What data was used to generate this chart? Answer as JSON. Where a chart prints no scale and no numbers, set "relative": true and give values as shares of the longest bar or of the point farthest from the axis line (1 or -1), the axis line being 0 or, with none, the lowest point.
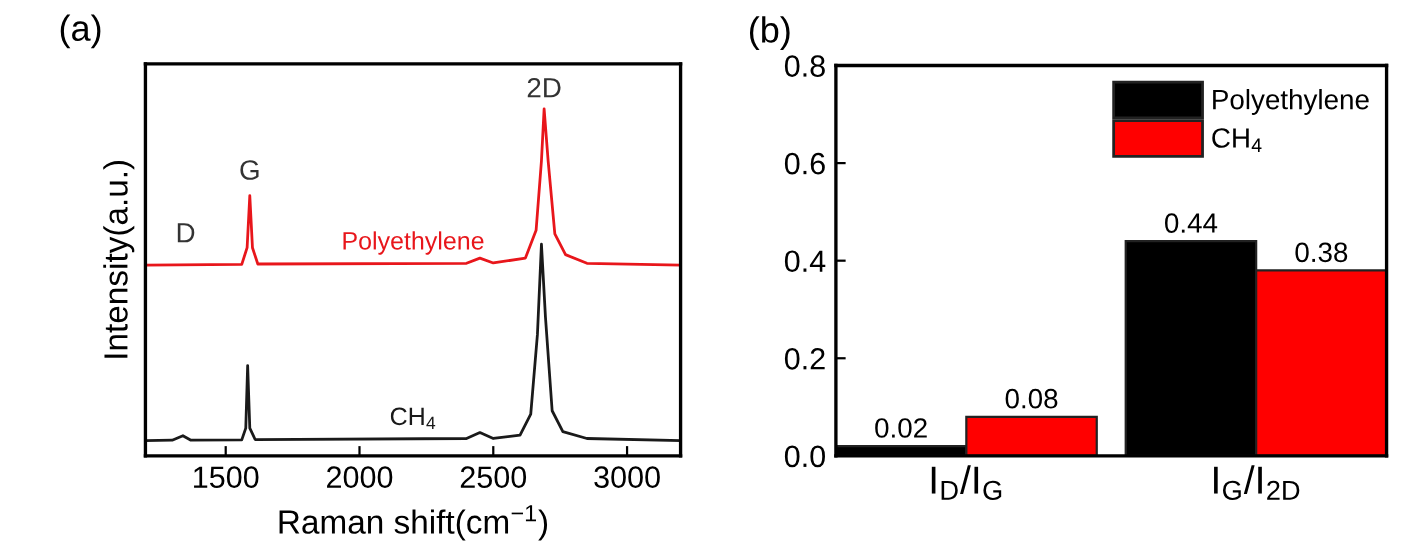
{
  "chart_data": [
    {
      "type": "line",
      "title": "(a)",
      "xlabel": "Raman shift(cm$^{−1}$)",
      "ylabel": "Intensity(a.u.)",
      "relative": true,
      "xlim": [
        1200,
        3200
      ],
      "xticks": [
        1500,
        2000,
        2500,
        3000
      ],
      "tick_labels": "x",
      "grid": false,
      "series": [
        {
          "name": "Polyethylene",
          "color": "#e8161b",
          "x": [
            1200,
            1560,
            1580,
            1590,
            1600,
            1620,
            2400,
            2450,
            2500,
            2620,
            2660,
            2680,
            2690,
            2705,
            2730,
            2770,
            2850,
            3200
          ],
          "values": [
            0.55,
            0.552,
            0.6,
            0.75,
            0.6,
            0.553,
            0.555,
            0.57,
            0.556,
            0.57,
            0.65,
            0.85,
            1.0,
            0.85,
            0.64,
            0.58,
            0.555,
            0.55
          ]
        },
        {
          "name": "CH$_{4}$",
          "color": "#1a1a1a",
          "x": [
            1200,
            1300,
            1340,
            1370,
            1560,
            1575,
            1582,
            1590,
            1610,
            2400,
            2450,
            2500,
            2600,
            2640,
            2665,
            2680,
            2695,
            2720,
            2760,
            2850,
            3200
          ],
          "values": [
            0.044,
            0.045,
            0.058,
            0.045,
            0.046,
            0.08,
            0.26,
            0.08,
            0.047,
            0.05,
            0.067,
            0.05,
            0.06,
            0.12,
            0.35,
            0.61,
            0.4,
            0.13,
            0.07,
            0.05,
            0.044
          ]
        }
      ],
      "annotations": [
        "D",
        "G",
        "2D"
      ]
    },
    {
      "type": "bar",
      "title": "(b)",
      "categories": [
        "I$_{D}$/I$_{G}$",
        "I$_{G}$/I$_{2D}$"
      ],
      "ylim": [
        0,
        0.8
      ],
      "yticks": [
        {
          "value": 0,
          "label": "0.0"
        },
        {
          "value": 0.2,
          "label": "0.2"
        },
        {
          "value": 0.4,
          "label": "0.4"
        },
        {
          "value": 0.6,
          "label": "0.6"
        },
        {
          "value": 0.8,
          "label": "0.8"
        }
      ],
      "data_labels": true,
      "legend": "top right",
      "grid": false,
      "series": [
        {
          "name": "Polyethylene",
          "color": "#000000",
          "values": [
            0.02,
            0.44
          ]
        },
        {
          "name": "CH$_{4}$",
          "color": "#ff0000",
          "values": [
            0.08,
            0.38
          ]
        }
      ]
    }
  ]
}
